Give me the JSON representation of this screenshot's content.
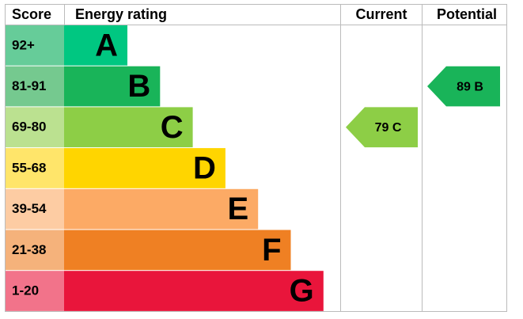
{
  "header": {
    "score": "Score",
    "rating": "Energy rating",
    "current": "Current",
    "potential": "Potential"
  },
  "bands": [
    {
      "score": "92+",
      "letter": "A",
      "color": "#00c781",
      "score_color": "#66cc99"
    },
    {
      "score": "81-91",
      "letter": "B",
      "color": "#19b459",
      "score_color": "#75c98f"
    },
    {
      "score": "69-80",
      "letter": "C",
      "color": "#8dce46",
      "score_color": "#bbe190"
    },
    {
      "score": "55-68",
      "letter": "D",
      "color": "#ffd500",
      "score_color": "#ffe56a"
    },
    {
      "score": "39-54",
      "letter": "E",
      "color": "#fcaa65",
      "score_color": "#fdcca3"
    },
    {
      "score": "21-38",
      "letter": "F",
      "color": "#ef8023",
      "score_color": "#f5b27b"
    },
    {
      "score": "1-20",
      "letter": "G",
      "color": "#e9153b",
      "score_color": "#f2738a"
    }
  ],
  "current": {
    "label": "79 C",
    "band": 2
  },
  "potential": {
    "label": "89 B",
    "band": 1
  }
}
